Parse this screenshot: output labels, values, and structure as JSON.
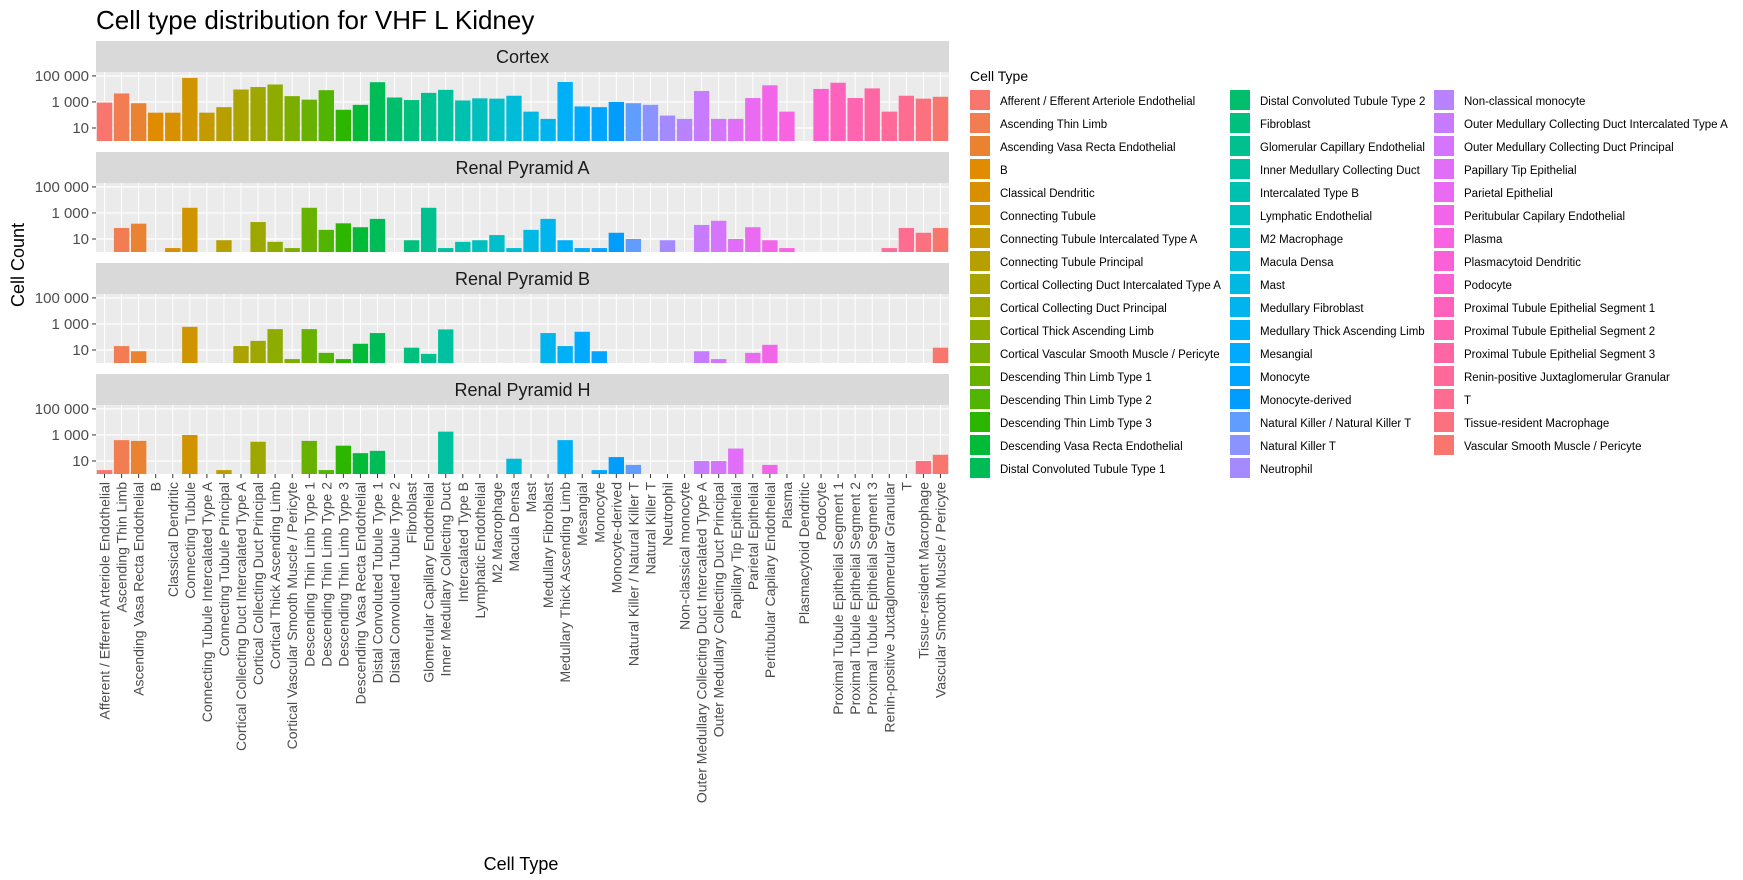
{
  "chart_data": {
    "type": "bar",
    "title": "Cell type distribution for VHF L Kidney",
    "xlabel": "Cell Type",
    "ylabel": "Cell Count",
    "y_scale": "log10",
    "ylim": [
      1,
      200000
    ],
    "y_ticks": [
      10,
      1000,
      100000
    ],
    "y_tick_labels": [
      "10",
      "1 000",
      "100 000"
    ],
    "grid": true,
    "legend_title": "Cell Type",
    "legend_position": "right",
    "categories": [
      "Afferent / Efferent Arteriole Endothelial",
      "Ascending Thin Limb",
      "Ascending Vasa Recta Endothelial",
      "B",
      "Classical Dendritic",
      "Connecting Tubule",
      "Connecting Tubule Intercalated Type A",
      "Connecting Tubule Principal",
      "Cortical Collecting Duct Intercalated Type A",
      "Cortical Collecting Duct Principal",
      "Cortical Thick Ascending Limb",
      "Cortical Vascular Smooth Muscle / Pericyte",
      "Descending Thin Limb Type 1",
      "Descending Thin Limb Type 2",
      "Descending Thin Limb Type 3",
      "Descending Vasa Recta Endothelial",
      "Distal Convoluted Tubule Type 1",
      "Distal Convoluted Tubule Type 2",
      "Fibroblast",
      "Glomerular Capillary Endothelial",
      "Inner Medullary Collecting Duct",
      "Intercalated Type B",
      "Lymphatic Endothelial",
      "M2 Macrophage",
      "Macula Densa",
      "Mast",
      "Medullary Fibroblast",
      "Medullary Thick Ascending Limb",
      "Mesangial",
      "Monocyte",
      "Monocyte-derived",
      "Natural Killer / Natural Killer T",
      "Natural Killer T",
      "Neutrophil",
      "Non-classical monocyte",
      "Outer Medullary Collecting Duct Intercalated Type A",
      "Outer Medullary Collecting Duct Principal",
      "Papillary Tip Epithelial",
      "Parietal Epithelial",
      "Peritubular Capilary Endothelial",
      "Plasma",
      "Plasmacytoid Dendritic",
      "Podocyte",
      "Proximal Tubule Epithelial Segment 1",
      "Proximal Tubule Epithelial Segment 2",
      "Proximal Tubule Epithelial Segment 3",
      "Renin-positive Juxtaglomerular Granular",
      "T",
      "Tissue-resident Macrophage",
      "Vascular Smooth Muscle / Pericyte"
    ],
    "colors": [
      "#F8766D",
      "#F27D53",
      "#EA8331",
      "#E08B00",
      "#D89000",
      "#CF9400",
      "#C49A00",
      "#B89F00",
      "#ABA300",
      "#9DA700",
      "#8EAB00",
      "#7CAE00",
      "#68B100",
      "#51B400",
      "#2DB600",
      "#00BA38",
      "#00BC56",
      "#00BE6C",
      "#00C07E",
      "#00C08F",
      "#00C19F",
      "#00C0AF",
      "#00BFBD",
      "#00BECA",
      "#00BCD8",
      "#00B9E3",
      "#00B5EE",
      "#00B0F6",
      "#00AAFE",
      "#00A5FF",
      "#009DFF",
      "#619CFF",
      "#8B93FF",
      "#A58AFF",
      "#B983FF",
      "#C77CFF",
      "#D575FE",
      "#E16EF6",
      "#EA6AF1",
      "#F166E8",
      "#F763E0",
      "#FB61D7",
      "#FD61D1",
      "#FF62BC",
      "#FF64B0",
      "#FF67A4",
      "#FF6A98",
      "#FF6C91",
      "#FC717F",
      "#F8766D"
    ],
    "facets": [
      {
        "name": "Cortex",
        "values": [
          900,
          4500,
          800,
          150,
          150,
          70000,
          150,
          400,
          9000,
          14000,
          22000,
          2800,
          1500,
          8000,
          250,
          600,
          33000,
          2200,
          1400,
          5000,
          8500,
          1300,
          1900,
          1800,
          3000,
          180,
          50,
          34000,
          450,
          400,
          1000,
          800,
          600,
          90,
          50,
          7000,
          50,
          50,
          2000,
          19000,
          180,
          0,
          10000,
          30000,
          2000,
          11000,
          180,
          3000,
          1800,
          2500
        ]
      },
      {
        "name": "Renal Pyramid A",
        "values": [
          0,
          70,
          150,
          0,
          2,
          2500,
          0,
          8,
          0,
          200,
          6,
          2,
          2500,
          50,
          160,
          80,
          350,
          0,
          8,
          2500,
          2,
          6,
          8,
          20,
          2,
          50,
          350,
          8,
          2,
          2,
          30,
          10,
          0,
          8,
          0,
          120,
          250,
          10,
          80,
          8,
          2,
          0,
          0,
          0,
          0,
          0,
          2,
          70,
          30,
          70
        ]
      },
      {
        "name": "Renal Pyramid B",
        "values": [
          0,
          20,
          8,
          0,
          0,
          600,
          0,
          0,
          20,
          50,
          400,
          2,
          400,
          6,
          2,
          30,
          200,
          0,
          15,
          5,
          380,
          0,
          0,
          0,
          0,
          0,
          200,
          20,
          250,
          8,
          0,
          0,
          0,
          0,
          0,
          8,
          2,
          0,
          6,
          25,
          0,
          0,
          0,
          0,
          0,
          0,
          0,
          0,
          0,
          15
        ]
      },
      {
        "name": "Renal Pyramid H",
        "values": [
          2,
          400,
          350,
          0,
          0,
          1000,
          0,
          2,
          0,
          300,
          0,
          0,
          350,
          2,
          150,
          40,
          60,
          0,
          0,
          0,
          1800,
          0,
          0,
          0,
          15,
          0,
          0,
          400,
          0,
          2,
          20,
          5,
          0,
          0,
          0,
          10,
          10,
          90,
          0,
          5,
          0,
          0,
          0,
          0,
          0,
          0,
          0,
          0,
          10,
          30
        ]
      }
    ]
  }
}
